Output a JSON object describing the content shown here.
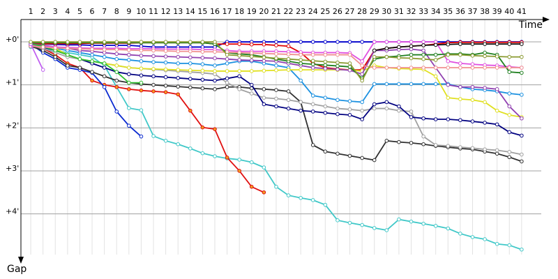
{
  "chart_data": {
    "type": "line",
    "x_label": "Time",
    "y_label": "Gap",
    "x": [
      1,
      2,
      3,
      4,
      5,
      6,
      7,
      8,
      9,
      10,
      11,
      12,
      13,
      14,
      15,
      16,
      17,
      18,
      19,
      20,
      21,
      22,
      23,
      24,
      25,
      26,
      27,
      28,
      29,
      30,
      31,
      32,
      33,
      34,
      35,
      36,
      37,
      38,
      39,
      40,
      41
    ],
    "xlim": [
      0.2,
      42.6
    ],
    "xticks": [
      1,
      2,
      3,
      4,
      5,
      6,
      7,
      8,
      9,
      10,
      11,
      12,
      13,
      14,
      15,
      16,
      17,
      18,
      19,
      20,
      21,
      22,
      23,
      24,
      25,
      26,
      27,
      28,
      29,
      30,
      31,
      32,
      33,
      34,
      35,
      36,
      37,
      38,
      39,
      40,
      41
    ],
    "ylim": [
      -0.52,
      5.11
    ],
    "yticks": [
      {
        "value": 0,
        "label": "+0'"
      },
      {
        "value": 1,
        "label": "+1'"
      },
      {
        "value": 2,
        "label": "+2'"
      },
      {
        "value": 3,
        "label": "+3'"
      },
      {
        "value": 4,
        "label": "+4'"
      }
    ],
    "y_inverted": true,
    "grid": true,
    "series": [
      {
        "color": "#0000cc",
        "values": [
          0.05,
          0.05,
          0.06,
          0.07,
          0.07,
          0.08,
          0.08,
          0.08,
          0.08,
          0.1,
          0.12,
          0.12,
          0.12,
          0.12,
          0.12,
          0.12,
          0,
          0,
          0,
          0,
          0,
          0,
          0,
          0,
          0,
          0,
          0,
          0,
          0,
          0,
          0,
          0,
          0,
          0,
          0,
          0,
          0,
          0,
          0,
          0,
          0
        ]
      },
      {
        "color": "#e00000",
        "values": [
          0.05,
          0.05,
          0.04,
          0.04,
          0.04,
          0.03,
          0.03,
          0.03,
          0.03,
          0.02,
          0.02,
          0.02,
          0.02,
          0.02,
          0.02,
          0.05,
          0.05,
          0.05,
          0.06,
          0.06,
          0.08,
          0.1,
          0.25,
          0.5,
          0.6,
          0.63,
          0.65,
          0.65,
          0.2,
          0.15,
          0.12,
          0.1,
          0.08,
          0.05,
          0.02,
          0.01,
          0.01,
          0.01,
          0.01,
          0.01,
          0.01
        ]
      },
      {
        "color": "#40c8c8",
        "values": [
          0.12,
          0.15,
          0.2,
          0.25,
          0.3,
          0.35,
          0.55,
          1.05,
          1.54,
          1.59,
          2.19,
          2.3,
          2.38,
          2.48,
          2.59,
          2.66,
          2.71,
          2.74,
          2.8,
          2.92,
          3.37,
          3.57,
          3.63,
          3.68,
          3.79,
          4.15,
          4.21,
          4.26,
          4.33,
          4.38,
          4.13,
          4.18,
          4.23,
          4.28,
          4.34,
          4.46,
          4.54,
          4.59,
          4.7,
          4.73,
          4.83
        ]
      },
      {
        "color": "#e01010",
        "marker_color": "#f0a020",
        "values": [
          0.1,
          0.15,
          0.3,
          0.5,
          0.6,
          0.9,
          1.0,
          1.05,
          1.1,
          1.13,
          1.15,
          1.17,
          1.22,
          1.6,
          1.99,
          2.03,
          2.69,
          3.0,
          3.37,
          3.5,
          null,
          null,
          null,
          null,
          null,
          null,
          null,
          null,
          null,
          null,
          null,
          null,
          null,
          null,
          null,
          null,
          null,
          null,
          null,
          null,
          null
        ]
      },
      {
        "color": "#0a2ad0",
        "values": [
          0.05,
          0.25,
          0.4,
          0.6,
          0.65,
          0.72,
          1.05,
          1.62,
          1.95,
          2.2,
          null,
          null,
          null,
          null,
          null,
          null,
          null,
          null,
          null,
          null,
          null,
          null,
          null,
          null,
          null,
          null,
          null,
          null,
          null,
          null,
          null,
          null,
          null,
          null,
          null,
          null,
          null,
          null,
          null,
          null,
          null
        ]
      },
      {
        "color": "#303030",
        "values": [
          0.1,
          0.2,
          0.35,
          0.55,
          0.6,
          0.7,
          0.8,
          0.9,
          0.95,
          0.98,
          1.0,
          1.02,
          1.04,
          1.06,
          1.08,
          1.1,
          1.05,
          1.05,
          1.08,
          1.1,
          1.12,
          1.15,
          1.4,
          2.4,
          2.55,
          2.6,
          2.65,
          2.7,
          2.75,
          2.3,
          2.33,
          2.35,
          2.38,
          2.42,
          2.45,
          2.48,
          2.5,
          2.55,
          2.6,
          2.68,
          2.78
        ]
      },
      {
        "color": "#a0a0a0",
        "values": [
          0.08,
          0.15,
          0.25,
          0.35,
          0.4,
          0.45,
          0.5,
          0.55,
          0.6,
          0.62,
          0.64,
          0.66,
          0.68,
          0.7,
          0.72,
          0.75,
          0.95,
          1.1,
          1.2,
          1.3,
          1.32,
          1.35,
          1.4,
          1.45,
          1.5,
          1.55,
          1.57,
          1.6,
          1.55,
          1.55,
          1.6,
          1.62,
          2.2,
          2.4,
          2.42,
          2.45,
          2.47,
          2.5,
          2.52,
          2.56,
          2.62
        ]
      },
      {
        "color": "#000080",
        "values": [
          0.08,
          0.12,
          0.2,
          0.3,
          0.4,
          0.5,
          0.6,
          0.7,
          0.75,
          0.78,
          0.8,
          0.82,
          0.84,
          0.86,
          0.88,
          0.9,
          0.85,
          0.8,
          1.0,
          1.45,
          1.5,
          1.55,
          1.6,
          1.62,
          1.65,
          1.68,
          1.7,
          1.8,
          1.45,
          1.4,
          1.5,
          1.75,
          1.78,
          1.8,
          1.8,
          1.82,
          1.85,
          1.88,
          1.92,
          2.1,
          2.18
        ]
      },
      {
        "color": "#1a90e0",
        "values": [
          0.06,
          0.1,
          0.15,
          0.2,
          0.25,
          0.3,
          0.35,
          0.4,
          0.42,
          0.45,
          0.47,
          0.48,
          0.5,
          0.5,
          0.52,
          0.55,
          0.5,
          0.45,
          0.45,
          0.5,
          0.55,
          0.6,
          0.9,
          1.25,
          1.3,
          1.35,
          1.38,
          1.4,
          0.98,
          0.98,
          0.98,
          0.98,
          0.98,
          0.98,
          0.98,
          1.05,
          1.1,
          1.12,
          1.15,
          1.2,
          1.23
        ]
      },
      {
        "color": "#e0e020",
        "values": [
          0.05,
          0.1,
          0.15,
          0.3,
          0.4,
          0.45,
          0.5,
          0.55,
          0.6,
          0.62,
          0.63,
          0.64,
          0.65,
          0.66,
          0.67,
          0.68,
          0.68,
          0.68,
          0.68,
          0.67,
          0.66,
          0.65,
          0.65,
          0.65,
          0.65,
          0.65,
          0.65,
          0.68,
          0.55,
          0.6,
          0.62,
          0.63,
          0.64,
          0.8,
          1.3,
          1.33,
          1.35,
          1.4,
          1.6,
          1.7,
          1.75
        ]
      },
      {
        "color": "#9040b0",
        "values": [
          0.05,
          0.08,
          0.12,
          0.15,
          0.2,
          0.22,
          0.25,
          0.28,
          0.3,
          0.32,
          0.33,
          0.34,
          0.35,
          0.36,
          0.37,
          0.38,
          0.4,
          0.42,
          0.43,
          0.44,
          0.45,
          0.5,
          0.55,
          0.6,
          0.62,
          0.64,
          0.66,
          0.75,
          0.2,
          0.2,
          0.18,
          0.17,
          0.2,
          0.6,
          1.0,
          1.05,
          1.05,
          1.07,
          1.1,
          1.5,
          1.78
        ]
      },
      {
        "color": "#e050e0",
        "values": [
          0.08,
          0.1,
          0.12,
          0.13,
          0.14,
          0.15,
          0.15,
          0.15,
          0.16,
          0.16,
          0.16,
          0.17,
          0.17,
          0.17,
          0.18,
          0.18,
          0.2,
          0.22,
          0.22,
          0.22,
          0.22,
          0.23,
          0.24,
          0.25,
          0.25,
          0.25,
          0.26,
          0.45,
          0,
          0,
          0,
          0,
          0,
          0,
          0.45,
          0.5,
          0.52,
          0.54,
          0.55,
          0.58,
          0.6
        ]
      },
      {
        "color": "#30c030",
        "values": [
          0.05,
          0.1,
          0.2,
          0.3,
          0.4,
          0.45,
          0.5,
          0.7,
          0.95,
          0.95,
          null,
          null,
          null,
          null,
          null,
          null,
          null,
          null,
          null,
          null,
          null,
          null,
          null,
          null,
          null,
          null,
          null,
          null,
          null,
          null,
          null,
          null,
          null,
          null,
          null,
          null,
          null,
          null,
          null,
          null,
          null
        ]
      },
      {
        "color": "#208020",
        "values": [
          0.02,
          0.02,
          0.02,
          0.02,
          0.02,
          0.02,
          0.02,
          0.02,
          0.02,
          0.02,
          0.02,
          0.02,
          0.02,
          0.02,
          0.02,
          0.05,
          0.25,
          0.28,
          0.3,
          0.35,
          0.4,
          0.45,
          0.5,
          0.52,
          0.54,
          0.56,
          0.58,
          0.85,
          0.4,
          0.35,
          0.33,
          0.3,
          0.3,
          0.3,
          0.28,
          0.28,
          0.3,
          0.25,
          0.3,
          0.7,
          0.72
        ]
      },
      {
        "color": "#f09090",
        "values": [
          0.1,
          0.12,
          0.14,
          0.15,
          0.16,
          0.17,
          0.18,
          0.18,
          0.19,
          0.2,
          0.2,
          0.21,
          0.22,
          0.22,
          0.23,
          0.23,
          0.24,
          0.25,
          0.26,
          0.27,
          0.28,
          0.29,
          0.3,
          0.3,
          0.3,
          0.3,
          0.3,
          0.55,
          0.6,
          0.6,
          0.6,
          0.6,
          0.6,
          0.6,
          0.6,
          0.6,
          0.6,
          0.6,
          0.6,
          0.6,
          0.6
        ]
      },
      {
        "color": "#c060f0",
        "values": [
          0.05,
          0.65,
          null,
          null,
          null,
          null,
          null,
          null,
          null,
          null,
          null,
          null,
          null,
          null,
          null,
          null,
          null,
          null,
          null,
          null,
          null,
          null,
          null,
          null,
          null,
          null,
          null,
          null,
          null,
          null,
          null,
          null,
          null,
          null,
          null,
          null,
          null,
          null,
          null,
          null,
          null
        ]
      },
      {
        "color": "#8a9a30",
        "values": [
          0,
          0,
          0,
          0,
          0,
          0,
          0,
          0,
          0,
          0,
          0,
          0,
          0,
          0,
          0,
          0,
          0.3,
          0.32,
          0.34,
          0.36,
          0.38,
          0.4,
          0.42,
          0.44,
          0.46,
          0.48,
          0.5,
          0.9,
          0.35,
          0.35,
          0.37,
          0.38,
          0.4,
          0.42,
          0.3,
          0.3,
          0.32,
          0.33,
          0.34,
          0.35,
          0.35
        ]
      },
      {
        "color": "#101010",
        "values": [
          null,
          null,
          null,
          null,
          null,
          null,
          null,
          null,
          null,
          null,
          null,
          null,
          null,
          null,
          null,
          null,
          null,
          null,
          null,
          null,
          null,
          null,
          null,
          null,
          null,
          null,
          null,
          null,
          0.2,
          0.15,
          0.12,
          0.1,
          0.08,
          0.07,
          0.06,
          0.05,
          0.05,
          0.05,
          0.05,
          0.05,
          0.05
        ]
      }
    ]
  }
}
